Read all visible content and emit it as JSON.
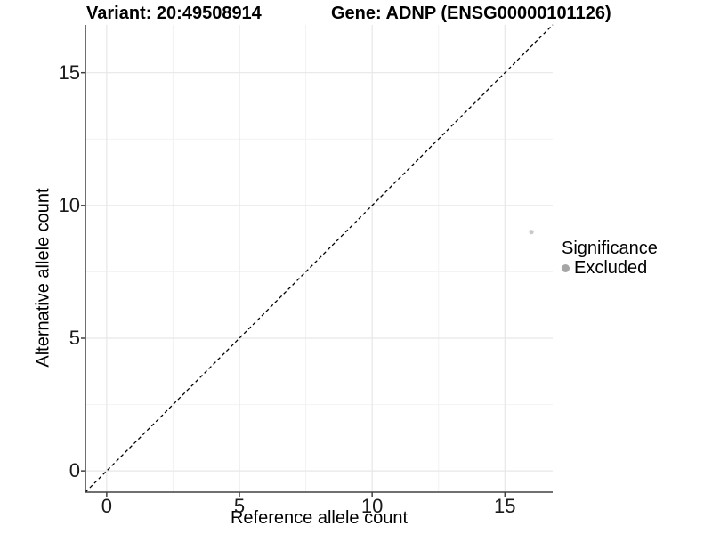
{
  "chart_data": {
    "type": "scatter",
    "title_left": "Variant: 20:49508914",
    "title_right": "Gene: ADNP (ENSG00000101126)",
    "xlabel": "Reference allele count",
    "ylabel": "Alternative allele count",
    "xlim": [
      -0.8,
      16.8
    ],
    "ylim": [
      -0.8,
      16.8
    ],
    "xticks": [
      0,
      5,
      10,
      15
    ],
    "yticks": [
      0,
      5,
      10,
      15
    ],
    "minor_ticks": [
      2.5,
      7.5,
      12.5
    ],
    "grid": "major and minor, light gray on white",
    "points": [
      {
        "x": 16,
        "y": 9,
        "significance": "Excluded"
      }
    ],
    "identity_line": {
      "style": "dashed",
      "from": [
        -0.8,
        -0.8
      ],
      "to": [
        16.8,
        16.8
      ]
    },
    "legend": {
      "title": "Significance",
      "position": "right",
      "items": [
        {
          "label": "Excluded",
          "marker": "circle",
          "color": "#a6a6a6"
        }
      ]
    }
  },
  "colors": {
    "background": "#ffffff",
    "point": "#c9c9c9",
    "legend_marker": "#a6a6a6",
    "axis_line": "#404040",
    "grid_major": "#e7e7e7",
    "grid_minor": "#f2f2f2",
    "identity_line": "#000000",
    "text": "#000000",
    "tick_text": "#1a1a1a"
  }
}
